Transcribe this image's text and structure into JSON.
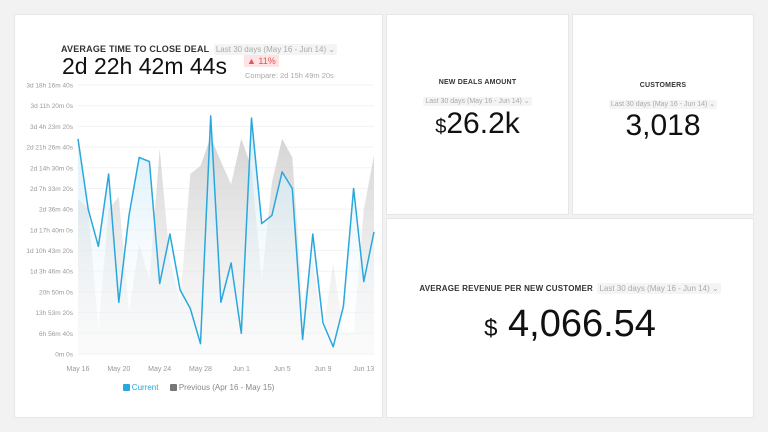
{
  "left_panel": {
    "title": "AVERAGE TIME TO CLOSE DEAL",
    "range": "Last 30 days (May 16 - Jun 14)",
    "value": "2d 22h 42m 44s",
    "change": "▲ 11%",
    "compare": "Compare: 2d 15h 49m 20s",
    "legend_current": "Current",
    "legend_previous": "Previous (Apr 16 - May 15)"
  },
  "new_deals": {
    "title": "NEW DEALS AMOUNT",
    "range": "Last 30 days (May 16 - Jun 14)",
    "currency": "$",
    "value": "26.2k"
  },
  "customers": {
    "title": "CUSTOMERS",
    "range": "Last 30 days (May 16 - Jun 14)",
    "value": "3,018"
  },
  "arpc": {
    "title": "AVERAGE REVENUE PER NEW CUSTOMER",
    "range": "Last 30 days (May 16 - Jun 14)",
    "currency": "$",
    "value": "4,066.54"
  },
  "colors": {
    "current": "#2aa7dc",
    "previous": "#cccccc",
    "change_bg": "#fde3e3",
    "change_text": "#e05555"
  },
  "chart_data": {
    "type": "line",
    "ylim": [
      0,
      325000
    ],
    "y_unit": "seconds",
    "yticks": [
      "0m 0s",
      "6h 56m 40s",
      "13h 53m 20s",
      "20h 50m 0s",
      "1d 3h 46m 40s",
      "1d 10h 43m 20s",
      "1d 17h 40m 0s",
      "2d 36m 40s",
      "2d 7h 33m 20s",
      "2d 14h 30m 0s",
      "2d 21h 26m 40s",
      "3d 4h 23m 20s",
      "3d 11h 20m 0s",
      "3d 18h 16m 40s"
    ],
    "xticks": [
      "May 16",
      "May 20",
      "May 24",
      "May 28",
      "Jun 1",
      "Jun 5",
      "Jun 9",
      "Jun 13"
    ],
    "x": [
      "May 16",
      "May 17",
      "May 18",
      "May 19",
      "May 20",
      "May 21",
      "May 22",
      "May 23",
      "May 24",
      "May 25",
      "May 26",
      "May 27",
      "May 28",
      "May 29",
      "May 30",
      "May 31",
      "Jun 1",
      "Jun 2",
      "Jun 3",
      "Jun 4",
      "Jun 5",
      "Jun 6",
      "Jun 7",
      "Jun 8",
      "Jun 9",
      "Jun 10",
      "Jun 11",
      "Jun 12",
      "Jun 13",
      "Jun 14"
    ],
    "series": [
      {
        "name": "Current",
        "values": [
          260000,
          175000,
          130000,
          217500,
          62500,
          167500,
          237500,
          232500,
          85000,
          145000,
          77500,
          55000,
          12500,
          287500,
          62500,
          110000,
          25000,
          285000,
          157500,
          167500,
          220000,
          200000,
          17500,
          145000,
          37500,
          8750,
          57500,
          200000,
          87500,
          147500
        ]
      },
      {
        "name": "Previous (Apr 16 - May 15)",
        "values": [
          187500,
          175000,
          30000,
          175000,
          190000,
          50000,
          132500,
          90000,
          247500,
          112500,
          62500,
          217500,
          227500,
          262500,
          232500,
          205000,
          260000,
          225000,
          90000,
          207500,
          260000,
          237500,
          62500,
          112500,
          25000,
          110000,
          25000,
          25000,
          175000,
          240000
        ]
      }
    ]
  }
}
